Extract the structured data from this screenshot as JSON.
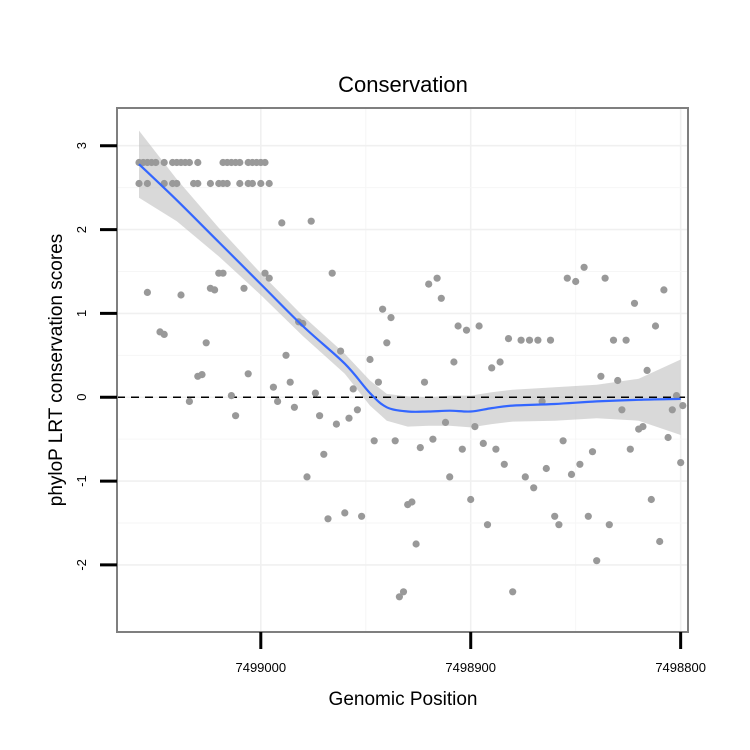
{
  "chart_data": {
    "type": "scatter",
    "title": "Conservation",
    "xlabel": "Genomic Position",
    "ylabel": "phyloP LRT conservation scores",
    "xlim": [
      7499068.5,
      7498796.5
    ],
    "ylim": [
      -2.8,
      3.45
    ],
    "x_reversed": true,
    "xticks": [
      7499000,
      7498900,
      7498800
    ],
    "yticks": [
      -2,
      -1,
      0,
      1,
      2,
      3
    ],
    "grid": true,
    "reference_line": {
      "y": 0,
      "style": "dashed"
    },
    "colors": {
      "points": "#999999",
      "smooth": "#3366ff",
      "ribbon": "#bfbfbf",
      "panel_border": "#7f7f7f"
    },
    "points": [
      [
        7499058,
        2.8
      ],
      [
        7499056,
        2.8
      ],
      [
        7499054,
        2.8
      ],
      [
        7499052,
        2.8
      ],
      [
        7499050,
        2.8
      ],
      [
        7499046,
        2.8
      ],
      [
        7499042,
        2.8
      ],
      [
        7499040,
        2.8
      ],
      [
        7499038,
        2.8
      ],
      [
        7499036,
        2.8
      ],
      [
        7499034,
        2.8
      ],
      [
        7499030,
        2.8
      ],
      [
        7499018,
        2.8
      ],
      [
        7499016,
        2.8
      ],
      [
        7499014,
        2.8
      ],
      [
        7499012,
        2.8
      ],
      [
        7499010,
        2.8
      ],
      [
        7499006,
        2.8
      ],
      [
        7499004,
        2.8
      ],
      [
        7499002,
        2.8
      ],
      [
        7499000,
        2.8
      ],
      [
        7498998,
        2.8
      ],
      [
        7499058,
        2.55
      ],
      [
        7499054,
        2.55
      ],
      [
        7499046,
        2.55
      ],
      [
        7499042,
        2.55
      ],
      [
        7499040,
        2.55
      ],
      [
        7499032,
        2.55
      ],
      [
        7499030,
        2.55
      ],
      [
        7499024,
        2.55
      ],
      [
        7499020,
        2.55
      ],
      [
        7499018,
        2.55
      ],
      [
        7499016,
        2.55
      ],
      [
        7499010,
        2.55
      ],
      [
        7499006,
        2.55
      ],
      [
        7499004,
        2.55
      ],
      [
        7499000,
        2.55
      ],
      [
        7498996,
        2.55
      ],
      [
        7499054,
        1.25
      ],
      [
        7499048,
        0.78
      ],
      [
        7499046,
        0.75
      ],
      [
        7499038,
        1.22
      ],
      [
        7499034,
        -0.05
      ],
      [
        7499030,
        0.25
      ],
      [
        7499028,
        0.27
      ],
      [
        7499026,
        0.65
      ],
      [
        7499024,
        1.3
      ],
      [
        7499022,
        1.28
      ],
      [
        7499020,
        1.48
      ],
      [
        7499018,
        1.48
      ],
      [
        7499014,
        0.02
      ],
      [
        7499012,
        -0.22
      ],
      [
        7499008,
        1.3
      ],
      [
        7499006,
        0.28
      ],
      [
        7498998,
        1.48
      ],
      [
        7498996,
        1.42
      ],
      [
        7498994,
        0.12
      ],
      [
        7498992,
        -0.05
      ],
      [
        7498990,
        2.08
      ],
      [
        7498988,
        0.5
      ],
      [
        7498986,
        0.18
      ],
      [
        7498984,
        -0.12
      ],
      [
        7498982,
        0.9
      ],
      [
        7498980,
        0.88
      ],
      [
        7498978,
        -0.95
      ],
      [
        7498976,
        2.1
      ],
      [
        7498974,
        0.05
      ],
      [
        7498972,
        -0.22
      ],
      [
        7498970,
        -0.68
      ],
      [
        7498968,
        -1.45
      ],
      [
        7498966,
        1.48
      ],
      [
        7498964,
        -0.32
      ],
      [
        7498962,
        0.55
      ],
      [
        7498960,
        -1.38
      ],
      [
        7498958,
        -0.25
      ],
      [
        7498956,
        0.1
      ],
      [
        7498954,
        -0.15
      ],
      [
        7498952,
        -1.42
      ],
      [
        7498948,
        0.45
      ],
      [
        7498946,
        -0.52
      ],
      [
        7498944,
        0.18
      ],
      [
        7498942,
        1.05
      ],
      [
        7498940,
        0.65
      ],
      [
        7498938,
        0.95
      ],
      [
        7498936,
        -0.52
      ],
      [
        7498934,
        -2.38
      ],
      [
        7498932,
        -2.32
      ],
      [
        7498930,
        -1.28
      ],
      [
        7498928,
        -1.25
      ],
      [
        7498926,
        -1.75
      ],
      [
        7498924,
        -0.6
      ],
      [
        7498922,
        0.18
      ],
      [
        7498920,
        1.35
      ],
      [
        7498918,
        -0.5
      ],
      [
        7498916,
        1.42
      ],
      [
        7498914,
        1.18
      ],
      [
        7498912,
        -0.3
      ],
      [
        7498910,
        -0.95
      ],
      [
        7498908,
        0.42
      ],
      [
        7498906,
        0.85
      ],
      [
        7498904,
        -0.62
      ],
      [
        7498902,
        0.8
      ],
      [
        7498900,
        -1.22
      ],
      [
        7498898,
        -0.35
      ],
      [
        7498896,
        0.85
      ],
      [
        7498894,
        -0.55
      ],
      [
        7498892,
        -1.52
      ],
      [
        7498890,
        0.35
      ],
      [
        7498888,
        -0.62
      ],
      [
        7498886,
        0.42
      ],
      [
        7498884,
        -0.8
      ],
      [
        7498882,
        0.7
      ],
      [
        7498880,
        -2.32
      ],
      [
        7498876,
        0.68
      ],
      [
        7498874,
        -0.95
      ],
      [
        7498872,
        0.68
      ],
      [
        7498870,
        -1.08
      ],
      [
        7498868,
        0.68
      ],
      [
        7498866,
        -0.05
      ],
      [
        7498864,
        -0.85
      ],
      [
        7498862,
        0.68
      ],
      [
        7498860,
        -1.42
      ],
      [
        7498858,
        -1.52
      ],
      [
        7498856,
        -0.52
      ],
      [
        7498854,
        1.42
      ],
      [
        7498852,
        -0.92
      ],
      [
        7498850,
        1.38
      ],
      [
        7498848,
        -0.8
      ],
      [
        7498846,
        1.55
      ],
      [
        7498844,
        -1.42
      ],
      [
        7498842,
        -0.65
      ],
      [
        7498840,
        -1.95
      ],
      [
        7498838,
        0.25
      ],
      [
        7498836,
        1.42
      ],
      [
        7498834,
        -1.52
      ],
      [
        7498832,
        0.68
      ],
      [
        7498830,
        0.2
      ],
      [
        7498828,
        -0.15
      ],
      [
        7498826,
        0.68
      ],
      [
        7498824,
        -0.62
      ],
      [
        7498822,
        1.12
      ],
      [
        7498820,
        -0.38
      ],
      [
        7498818,
        -0.35
      ],
      [
        7498816,
        0.32
      ],
      [
        7498814,
        -1.22
      ],
      [
        7498812,
        0.85
      ],
      [
        7498810,
        -1.72
      ],
      [
        7498808,
        1.28
      ],
      [
        7498806,
        -0.48
      ],
      [
        7498804,
        -0.15
      ],
      [
        7498802,
        0.02
      ],
      [
        7498800,
        -0.78
      ],
      [
        7498799,
        -0.1
      ]
    ],
    "smooth_fit": [
      [
        7499058,
        2.78
      ],
      [
        7499040,
        2.35
      ],
      [
        7499020,
        1.85
      ],
      [
        7499000,
        1.35
      ],
      [
        7498980,
        0.85
      ],
      [
        7498960,
        0.4
      ],
      [
        7498948,
        0.05
      ],
      [
        7498940,
        -0.12
      ],
      [
        7498930,
        -0.17
      ],
      [
        7498920,
        -0.17
      ],
      [
        7498910,
        -0.16
      ],
      [
        7498900,
        -0.17
      ],
      [
        7498890,
        -0.13
      ],
      [
        7498880,
        -0.1
      ],
      [
        7498860,
        -0.08
      ],
      [
        7498840,
        -0.05
      ],
      [
        7498820,
        -0.03
      ],
      [
        7498800,
        -0.02
      ]
    ],
    "smooth_ci_upper": [
      [
        7499058,
        3.18
      ],
      [
        7499040,
        2.6
      ],
      [
        7499020,
        2.02
      ],
      [
        7499000,
        1.48
      ],
      [
        7498980,
        0.97
      ],
      [
        7498960,
        0.52
      ],
      [
        7498948,
        0.2
      ],
      [
        7498940,
        0.04
      ],
      [
        7498930,
        0.01
      ],
      [
        7498920,
        0.0
      ],
      [
        7498910,
        0.02
      ],
      [
        7498900,
        0.02
      ],
      [
        7498890,
        0.06
      ],
      [
        7498880,
        0.09
      ],
      [
        7498860,
        0.12
      ],
      [
        7498840,
        0.15
      ],
      [
        7498820,
        0.22
      ],
      [
        7498800,
        0.45
      ]
    ],
    "smooth_ci_lower": [
      [
        7499058,
        2.38
      ],
      [
        7499040,
        2.1
      ],
      [
        7499020,
        1.68
      ],
      [
        7499000,
        1.22
      ],
      [
        7498980,
        0.73
      ],
      [
        7498960,
        0.28
      ],
      [
        7498948,
        -0.1
      ],
      [
        7498940,
        -0.28
      ],
      [
        7498930,
        -0.35
      ],
      [
        7498920,
        -0.34
      ],
      [
        7498910,
        -0.34
      ],
      [
        7498900,
        -0.36
      ],
      [
        7498890,
        -0.32
      ],
      [
        7498880,
        -0.29
      ],
      [
        7498860,
        -0.28
      ],
      [
        7498840,
        -0.25
      ],
      [
        7498820,
        -0.28
      ],
      [
        7498800,
        -0.45
      ]
    ]
  }
}
